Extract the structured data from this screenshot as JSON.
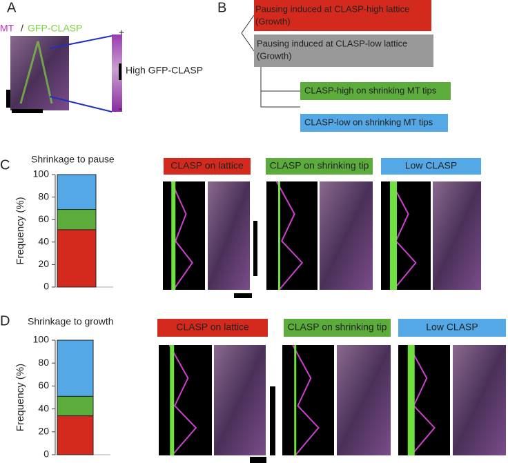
{
  "panels": {
    "a": {
      "letter": "A",
      "mt": "MT",
      "sep": "/",
      "clasp": "GFP-CLASP",
      "plus": "+",
      "minus": "-",
      "label": "High GFP-CLASP"
    },
    "b": {
      "letter": "B",
      "boxes": [
        {
          "lines": [
            "Pausing induced at CLASP-high lattice",
            "(Growth)"
          ]
        },
        {
          "lines": [
            "Pausing induced at CLASP-low lattice",
            "(Growth)"
          ]
        },
        {
          "lines": [
            "CLASP-high on shrinking MT tips"
          ]
        },
        {
          "lines": [
            "CLASP-low on shrinking MT tips"
          ]
        }
      ]
    },
    "c": {
      "letter": "C"
    },
    "d": {
      "letter": "D"
    }
  },
  "chart_data": [
    {
      "type": "stacked-bar",
      "title": "Shrinkage to pause",
      "ylabel": "Frequency (%)",
      "categories": [
        null
      ],
      "ylim": [
        0,
        100
      ],
      "yticks": [
        0,
        20,
        40,
        60,
        80,
        100
      ],
      "series": [
        {
          "name": "CLASP on lattice",
          "color": "#d42a1e",
          "values": [
            51
          ]
        },
        {
          "name": "CLASP on shrinking tip",
          "color": "#5cac3c",
          "values": [
            18
          ]
        },
        {
          "name": "Low CLASP",
          "color": "#54a8e6",
          "values": [
            31
          ]
        }
      ]
    },
    {
      "type": "stacked-bar",
      "title": "Shrinkage to growth",
      "ylabel": "Frequency (%)",
      "categories": [
        null
      ],
      "ylim": [
        0,
        100
      ],
      "yticks": [
        0,
        20,
        40,
        60,
        80,
        100
      ],
      "series": [
        {
          "name": "CLASP on lattice",
          "color": "#d42a1e",
          "values": [
            34
          ]
        },
        {
          "name": "CLASP on shrinking tip",
          "color": "#5cac3c",
          "values": [
            17
          ]
        },
        {
          "name": "Low CLASP",
          "color": "#54a8e6",
          "values": [
            49
          ]
        }
      ]
    }
  ]
}
